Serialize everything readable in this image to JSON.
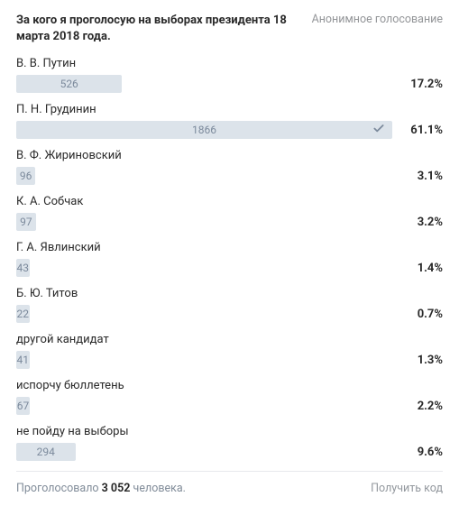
{
  "poll": {
    "title": "За кого я проголосую на выборах президента 18 марта 2018 года.",
    "anon_label": "Анонимное голосование",
    "bar_color": "#dce3ea",
    "bar_max_pct": 61.1,
    "options": [
      {
        "label": "В. В. Путин",
        "count": 526,
        "pct": "17.2%",
        "voted": false
      },
      {
        "label": "П. Н. Грудинин",
        "count": 1866,
        "pct": "61.1%",
        "voted": true
      },
      {
        "label": "В. Ф. Жириновский",
        "count": 96,
        "pct": "3.1%",
        "voted": false
      },
      {
        "label": "К. А. Собчак",
        "count": 97,
        "pct": "3.2%",
        "voted": false
      },
      {
        "label": "Г. А. Явлинский",
        "count": 43,
        "pct": "1.4%",
        "voted": false
      },
      {
        "label": "Б. Ю. Титов",
        "count": 22,
        "pct": "0.7%",
        "voted": false
      },
      {
        "label": "другой кандидат",
        "count": 41,
        "pct": "1.3%",
        "voted": false
      },
      {
        "label": "испорчу бюллетень",
        "count": 67,
        "pct": "2.2%",
        "voted": false
      },
      {
        "label": "не пойду на выборы",
        "count": 294,
        "pct": "9.6%",
        "voted": false
      }
    ],
    "footer": {
      "voted_prefix": "Проголосовало ",
      "voted_count": "3 052",
      "voted_suffix": " человека.",
      "get_code": "Получить код"
    }
  }
}
